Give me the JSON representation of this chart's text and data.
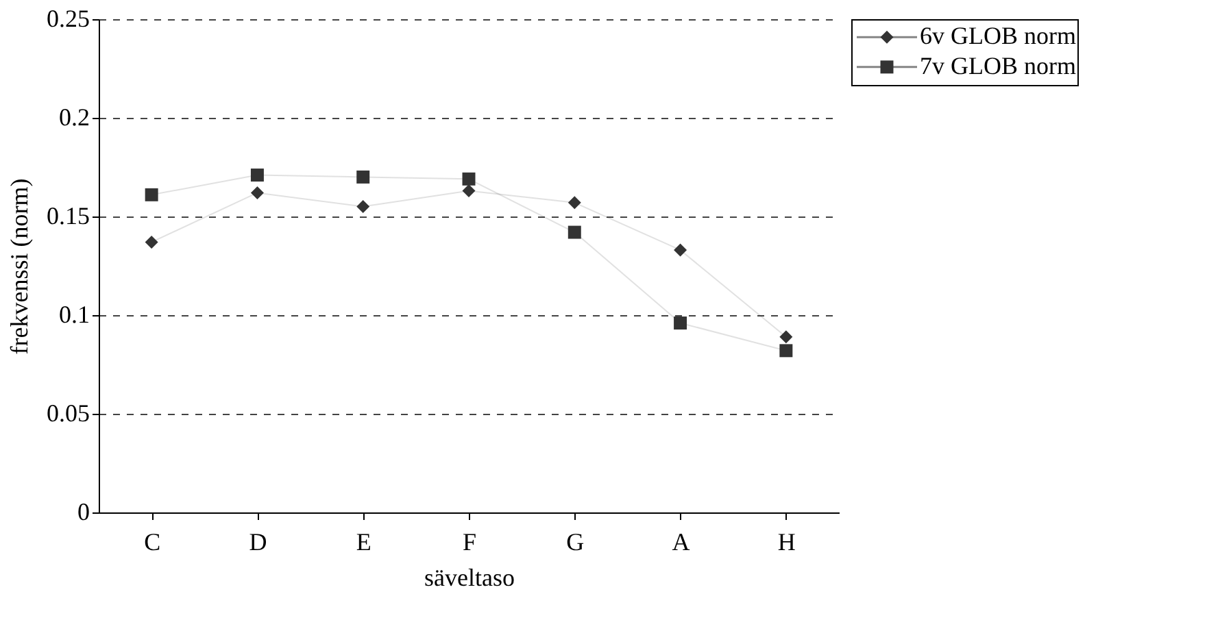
{
  "chart_data": {
    "type": "line",
    "xlabel": "säveltaso",
    "ylabel": "frekvenssi (norm)",
    "categories": [
      "C",
      "D",
      "E",
      "F",
      "G",
      "A",
      "H"
    ],
    "series": [
      {
        "name": "6v GLOB norm",
        "color": "#333333",
        "marker": "diamond",
        "values": [
          0.137,
          0.162,
          0.155,
          0.163,
          0.157,
          0.133,
          0.089
        ]
      },
      {
        "name": "7v GLOB norm",
        "color": "#333333",
        "marker": "square",
        "values": [
          0.161,
          0.171,
          0.17,
          0.169,
          0.142,
          0.096,
          0.082
        ]
      }
    ],
    "ylim": [
      0,
      0.25
    ],
    "yticks": [
      0,
      0.05,
      0.1,
      0.15,
      0.2,
      0.25
    ],
    "grid": "y",
    "legend": "right",
    "line_style": "solid"
  }
}
